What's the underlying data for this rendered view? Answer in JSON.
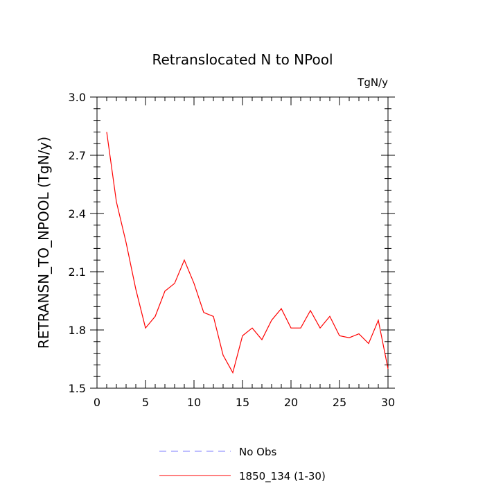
{
  "chart_data": {
    "type": "line",
    "title": "Retranslocated N to NPool",
    "units": "TgN/y",
    "xlabel": "",
    "ylabel": "RETRANSN_TO_NPOOL  (TgN/y)",
    "xlim": [
      0,
      30
    ],
    "ylim": [
      1.5,
      3.0
    ],
    "x_ticks": [
      0,
      5,
      10,
      15,
      20,
      25,
      30
    ],
    "x_tick_labels": [
      "0",
      "5",
      "10",
      "15",
      "20",
      "25",
      "30"
    ],
    "y_ticks": [
      1.5,
      1.8,
      2.1,
      2.4,
      2.7,
      3.0
    ],
    "y_tick_labels": [
      "1.5",
      "1.8",
      "2.1",
      "2.4",
      "2.7",
      "3.0"
    ],
    "grid": false,
    "legend_position": "bottom-center",
    "series": [
      {
        "name": "1850_134 (1-30)",
        "color": "#ff0000",
        "dash": "solid",
        "x": [
          1,
          2,
          3,
          4,
          5,
          6,
          7,
          8,
          9,
          10,
          11,
          12,
          13,
          14,
          15,
          16,
          17,
          18,
          19,
          20,
          21,
          22,
          23,
          24,
          25,
          26,
          27,
          28,
          29,
          30
        ],
        "y": [
          2.82,
          2.46,
          2.25,
          2.01,
          1.81,
          1.87,
          2.0,
          2.04,
          2.16,
          2.04,
          1.89,
          1.87,
          1.67,
          1.58,
          1.77,
          1.81,
          1.75,
          1.85,
          1.91,
          1.81,
          1.81,
          1.9,
          1.81,
          1.87,
          1.77,
          1.76,
          1.78,
          1.73,
          1.85,
          1.6
        ]
      }
    ],
    "legend": [
      {
        "label": "No Obs",
        "color": "#7d7dff",
        "dash": "dashed"
      },
      {
        "label": "1850_134 (1-30)",
        "color": "#ff0000",
        "dash": "solid"
      }
    ]
  }
}
